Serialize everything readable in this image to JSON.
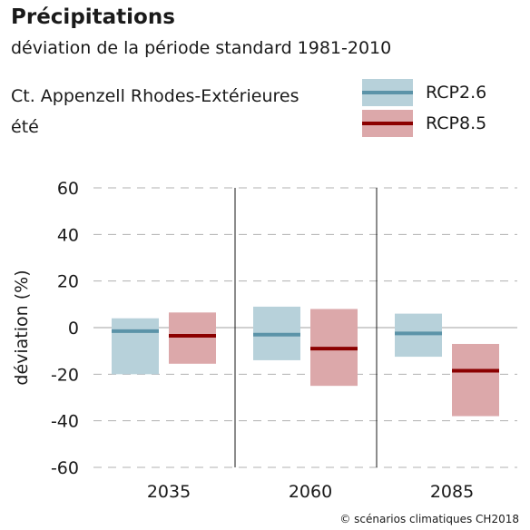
{
  "header": {
    "title": "Précipitations",
    "subtitle": "déviation de la période standard 1981-2010",
    "region": "Ct. Appenzell Rhodes-Extérieures",
    "season": "été"
  },
  "legend": {
    "items": [
      {
        "label": "RCP2.6",
        "band_color": "#b7d1da",
        "line_color": "#5b93a8"
      },
      {
        "label": "RCP8.5",
        "band_color": "#dca8aa",
        "line_color": "#8b0000"
      }
    ]
  },
  "footer": {
    "copyright": "© scénarios climatiques CH2018"
  },
  "chart_data": {
    "type": "bar",
    "title": "Précipitations",
    "subtitle": "déviation de la période standard 1981-2010",
    "xlabel": "",
    "ylabel": "déviation (%)",
    "ylim": [
      -60,
      60
    ],
    "yticks": [
      60,
      40,
      20,
      0,
      -20,
      -40,
      -60
    ],
    "ytick_labels": [
      "60",
      "40",
      "20",
      "0",
      "-20",
      "-40",
      "-60"
    ],
    "categories": [
      "2035",
      "2060",
      "2085"
    ],
    "grid": true,
    "legend_position": "top-right",
    "series": [
      {
        "name": "RCP2.6",
        "low": [
          -20,
          -14,
          -12.5
        ],
        "high": [
          4,
          9,
          6
        ],
        "median": [
          -1.5,
          -3,
          -2.5
        ]
      },
      {
        "name": "RCP8.5",
        "low": [
          -15.5,
          -25,
          -38
        ],
        "high": [
          6.5,
          8,
          -7
        ],
        "median": [
          -3.5,
          -9,
          -18.5
        ]
      }
    ]
  }
}
